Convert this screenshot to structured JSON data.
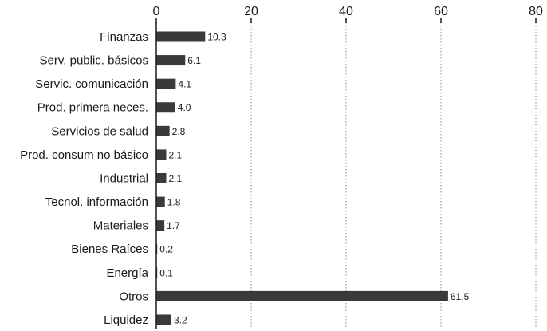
{
  "chart_data": {
    "type": "bar",
    "orientation": "horizontal",
    "categories": [
      "Finanzas",
      "Serv. public. básicos",
      "Servic. comunicación",
      "Prod. primera neces.",
      "Servicios de salud",
      "Prod. consum no básico",
      "Industrial",
      "Tecnol. información",
      "Materiales",
      "Bienes Raíces",
      "Energía",
      "Otros",
      "Liquidez"
    ],
    "values": [
      10.3,
      6.1,
      4.1,
      4.0,
      2.8,
      2.1,
      2.1,
      1.8,
      1.7,
      0.2,
      0.1,
      61.5,
      3.2
    ],
    "value_labels": [
      "10.3",
      "6.1",
      "4.1",
      "4.0",
      "2.8",
      "2.1",
      "2.1",
      "1.8",
      "1.7",
      "0.2",
      "0.1",
      "61.5",
      "3.2"
    ],
    "xlim": [
      0,
      80
    ],
    "xticks": [
      0,
      20,
      40,
      60,
      80
    ],
    "xtick_labels": [
      "0",
      "20",
      "40",
      "60",
      "80"
    ],
    "xaxis_position": "top",
    "grid": "vertical dotted",
    "bar_color": "#3a3a3a",
    "title": "",
    "xlabel": "",
    "ylabel": ""
  }
}
